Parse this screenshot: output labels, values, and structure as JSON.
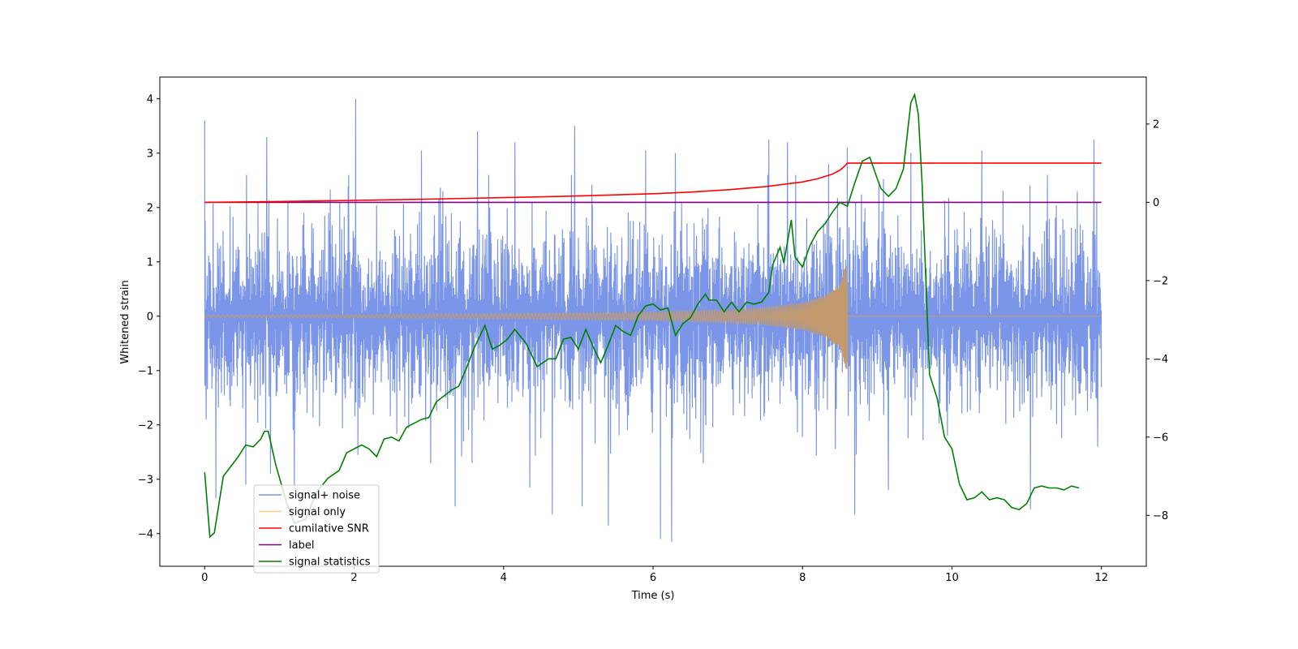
{
  "chart_data": {
    "type": "line",
    "title": "",
    "xlabel": "Time (s)",
    "ylabel": "Whitened strain",
    "y2label": "",
    "xlim": [
      -0.6,
      12.6
    ],
    "ylim": [
      -4.6,
      4.4
    ],
    "y2lim": [
      -9.3,
      3.2
    ],
    "xticks": [
      0,
      2,
      4,
      6,
      8,
      10,
      12
    ],
    "yticks": [
      -4,
      -3,
      -2,
      -1,
      0,
      1,
      2,
      3,
      4
    ],
    "y2ticks": [
      -8,
      -6,
      -4,
      -2,
      0,
      2
    ],
    "grid": false,
    "legend": {
      "position": "lower-left",
      "entries": [
        {
          "label": "signal+ noise",
          "color": "#7b96e8"
        },
        {
          "label": "signal only",
          "color": "#ffcc80"
        },
        {
          "label": "cumilative SNR",
          "color": "#ff0000"
        },
        {
          "label": "label",
          "color": "#800080"
        },
        {
          "label": "signal statistics",
          "color": "#008000"
        }
      ]
    },
    "series": [
      {
        "name": "signal+ noise",
        "axis": "left",
        "color": "#7b96e8",
        "description_values": {
          "duration": [
            0,
            12
          ],
          "band_typical": [
            -2.4,
            2.4
          ],
          "peaks_max": 4.0,
          "peaks_min": -4.15
        },
        "peaks": [
          [
            0.0,
            3.6
          ],
          [
            0.02,
            -1.9
          ],
          [
            0.15,
            -3.35
          ],
          [
            0.55,
            -3.1
          ],
          [
            0.83,
            3.3
          ],
          [
            0.88,
            -2.9
          ],
          [
            1.2,
            -3.25
          ],
          [
            2.02,
            4.0
          ],
          [
            2.05,
            -2.55
          ],
          [
            2.9,
            3.05
          ],
          [
            3.35,
            -3.5
          ],
          [
            3.65,
            3.4
          ],
          [
            4.15,
            3.2
          ],
          [
            4.35,
            -3.15
          ],
          [
            4.65,
            -3.65
          ],
          [
            4.95,
            3.5
          ],
          [
            5.05,
            -3.5
          ],
          [
            5.4,
            2.95
          ],
          [
            5.4,
            -3.85
          ],
          [
            5.9,
            3.05
          ],
          [
            6.1,
            -4.1
          ],
          [
            6.25,
            -4.15
          ],
          [
            6.3,
            3.0
          ],
          [
            7.55,
            3.25
          ],
          [
            7.8,
            3.2
          ],
          [
            8.35,
            2.8
          ],
          [
            8.6,
            3.1
          ],
          [
            8.7,
            -3.65
          ],
          [
            9.15,
            -3.2
          ],
          [
            9.45,
            3.0
          ],
          [
            10.4,
            3.05
          ],
          [
            11.05,
            3.6
          ],
          [
            11.05,
            -3.55
          ],
          [
            11.9,
            3.25
          ],
          [
            11.95,
            -2.4
          ]
        ]
      },
      {
        "name": "signal only",
        "axis": "left",
        "color": "#ffcc80",
        "description_values": {
          "chirp_start": 0,
          "chirp_end": 8.6,
          "amplitude_start": 0.02,
          "amplitude_end": 1.05
        },
        "envelope": [
          [
            0,
            0.02
          ],
          [
            2,
            0.03
          ],
          [
            4,
            0.05
          ],
          [
            6,
            0.08
          ],
          [
            7,
            0.12
          ],
          [
            7.5,
            0.16
          ],
          [
            8.0,
            0.25
          ],
          [
            8.3,
            0.38
          ],
          [
            8.5,
            0.6
          ],
          [
            8.6,
            1.05
          ]
        ]
      },
      {
        "name": "cumilative SNR",
        "axis": "right",
        "color": "#ff0000",
        "points": [
          [
            0,
            0.0
          ],
          [
            1,
            0.02
          ],
          [
            2,
            0.05
          ],
          [
            3,
            0.08
          ],
          [
            4,
            0.12
          ],
          [
            5,
            0.16
          ],
          [
            6,
            0.22
          ],
          [
            6.5,
            0.26
          ],
          [
            7,
            0.32
          ],
          [
            7.5,
            0.4
          ],
          [
            8,
            0.52
          ],
          [
            8.2,
            0.6
          ],
          [
            8.4,
            0.72
          ],
          [
            8.5,
            0.82
          ],
          [
            8.55,
            0.9
          ],
          [
            8.6,
            1.0
          ],
          [
            12,
            1.0
          ]
        ]
      },
      {
        "name": "label",
        "axis": "right",
        "color": "#800080",
        "points": [
          [
            0,
            0.0
          ],
          [
            12,
            0.0
          ]
        ]
      },
      {
        "name": "signal statistics",
        "axis": "right",
        "color": "#008000",
        "points": [
          [
            0.0,
            -6.9
          ],
          [
            0.07,
            -8.55
          ],
          [
            0.13,
            -8.45
          ],
          [
            0.25,
            -7.0
          ],
          [
            0.35,
            -6.75
          ],
          [
            0.45,
            -6.5
          ],
          [
            0.55,
            -6.2
          ],
          [
            0.65,
            -6.25
          ],
          [
            0.75,
            -6.05
          ],
          [
            0.8,
            -5.85
          ],
          [
            0.85,
            -5.85
          ],
          [
            0.95,
            -6.7
          ],
          [
            1.1,
            -7.7
          ],
          [
            1.2,
            -8.2
          ],
          [
            1.35,
            -8.1
          ],
          [
            1.5,
            -7.4
          ],
          [
            1.65,
            -7.05
          ],
          [
            1.8,
            -6.85
          ],
          [
            1.9,
            -6.4
          ],
          [
            2.0,
            -6.3
          ],
          [
            2.1,
            -6.2
          ],
          [
            2.2,
            -6.3
          ],
          [
            2.3,
            -6.5
          ],
          [
            2.4,
            -6.05
          ],
          [
            2.5,
            -6.0
          ],
          [
            2.6,
            -6.1
          ],
          [
            2.7,
            -5.75
          ],
          [
            2.8,
            -5.65
          ],
          [
            2.9,
            -5.55
          ],
          [
            3.0,
            -5.5
          ],
          [
            3.1,
            -5.1
          ],
          [
            3.2,
            -4.95
          ],
          [
            3.3,
            -4.8
          ],
          [
            3.4,
            -4.7
          ],
          [
            3.5,
            -4.25
          ],
          [
            3.6,
            -3.75
          ],
          [
            3.7,
            -3.35
          ],
          [
            3.75,
            -3.15
          ],
          [
            3.85,
            -3.75
          ],
          [
            3.95,
            -3.65
          ],
          [
            4.05,
            -3.5
          ],
          [
            4.15,
            -3.25
          ],
          [
            4.3,
            -3.6
          ],
          [
            4.45,
            -4.2
          ],
          [
            4.6,
            -4.0
          ],
          [
            4.7,
            -4.0
          ],
          [
            4.8,
            -3.5
          ],
          [
            4.9,
            -3.45
          ],
          [
            5.0,
            -3.75
          ],
          [
            5.1,
            -3.25
          ],
          [
            5.2,
            -3.7
          ],
          [
            5.3,
            -4.1
          ],
          [
            5.4,
            -3.65
          ],
          [
            5.5,
            -3.15
          ],
          [
            5.6,
            -3.3
          ],
          [
            5.7,
            -3.4
          ],
          [
            5.8,
            -2.9
          ],
          [
            5.9,
            -2.65
          ],
          [
            6.0,
            -2.6
          ],
          [
            6.1,
            -2.75
          ],
          [
            6.2,
            -2.7
          ],
          [
            6.3,
            -3.4
          ],
          [
            6.4,
            -3.1
          ],
          [
            6.5,
            -2.95
          ],
          [
            6.6,
            -2.6
          ],
          [
            6.7,
            -2.35
          ],
          [
            6.75,
            -2.5
          ],
          [
            6.85,
            -2.5
          ],
          [
            6.95,
            -2.8
          ],
          [
            7.05,
            -2.55
          ],
          [
            7.15,
            -2.8
          ],
          [
            7.25,
            -2.55
          ],
          [
            7.35,
            -2.6
          ],
          [
            7.45,
            -2.55
          ],
          [
            7.55,
            -2.3
          ],
          [
            7.6,
            -1.6
          ],
          [
            7.7,
            -1.15
          ],
          [
            7.75,
            -1.55
          ],
          [
            7.85,
            -0.45
          ],
          [
            7.9,
            -1.4
          ],
          [
            8.0,
            -1.65
          ],
          [
            8.1,
            -1.1
          ],
          [
            8.2,
            -0.75
          ],
          [
            8.3,
            -0.55
          ],
          [
            8.4,
            -0.25
          ],
          [
            8.5,
            0.0
          ],
          [
            8.6,
            -0.1
          ],
          [
            8.7,
            0.5
          ],
          [
            8.8,
            1.05
          ],
          [
            8.9,
            1.15
          ],
          [
            9.0,
            0.6
          ],
          [
            9.05,
            0.35
          ],
          [
            9.15,
            0.15
          ],
          [
            9.25,
            0.35
          ],
          [
            9.35,
            0.85
          ],
          [
            9.45,
            2.55
          ],
          [
            9.5,
            2.75
          ],
          [
            9.55,
            2.25
          ],
          [
            9.6,
            0.5
          ],
          [
            9.7,
            -4.4
          ],
          [
            9.8,
            -5.0
          ],
          [
            9.9,
            -6.0
          ],
          [
            10.0,
            -6.3
          ],
          [
            10.1,
            -7.2
          ],
          [
            10.2,
            -7.6
          ],
          [
            10.3,
            -7.55
          ],
          [
            10.4,
            -7.4
          ],
          [
            10.5,
            -7.6
          ],
          [
            10.6,
            -7.55
          ],
          [
            10.7,
            -7.6
          ],
          [
            10.8,
            -7.8
          ],
          [
            10.9,
            -7.85
          ],
          [
            11.0,
            -7.7
          ],
          [
            11.1,
            -7.3
          ],
          [
            11.2,
            -7.25
          ],
          [
            11.3,
            -7.3
          ],
          [
            11.4,
            -7.3
          ],
          [
            11.5,
            -7.35
          ],
          [
            11.6,
            -7.25
          ],
          [
            11.7,
            -7.3
          ]
        ]
      }
    ]
  }
}
